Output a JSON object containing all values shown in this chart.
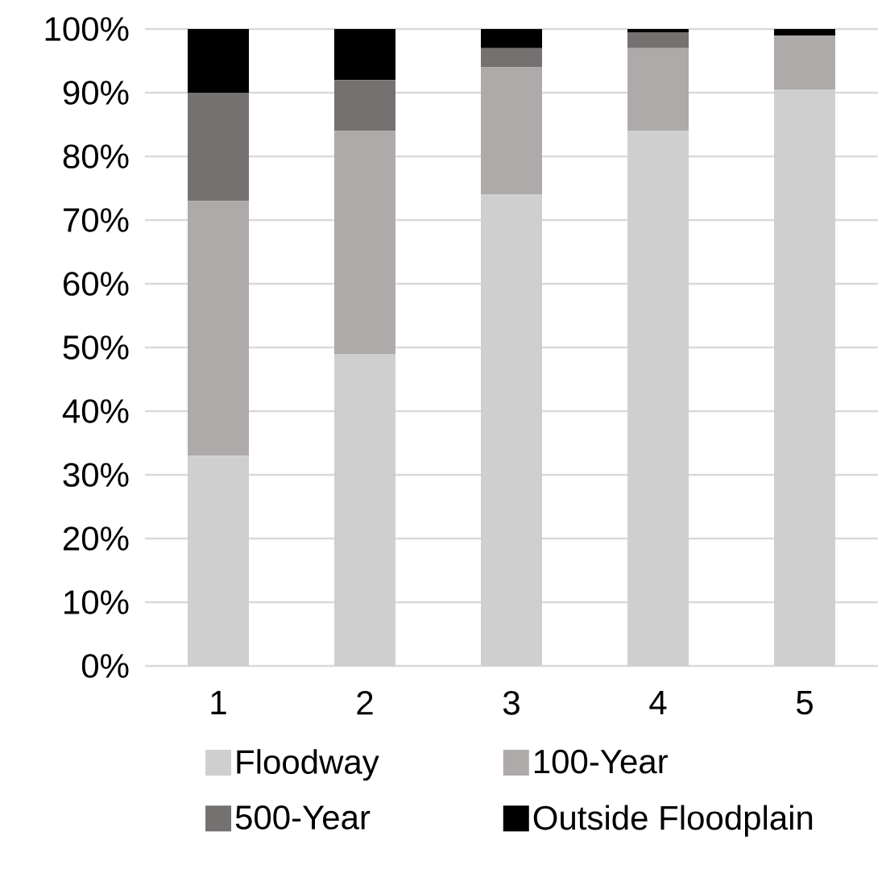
{
  "chart_data": {
    "type": "bar",
    "stacked": true,
    "categories": [
      "1",
      "2",
      "3",
      "4",
      "5"
    ],
    "series": [
      {
        "name": "Floodway",
        "color": "#d0cfcf",
        "values": [
          33,
          49,
          74,
          84,
          90.5
        ]
      },
      {
        "name": "100-Year",
        "color": "#aeaaaa",
        "values": [
          40,
          35,
          20,
          13,
          8.5
        ]
      },
      {
        "name": "500-Year",
        "color": "#767171",
        "values": [
          17,
          8,
          3,
          2.5,
          0
        ]
      },
      {
        "name": "Outside Floodplain",
        "color": "#000000",
        "values": [
          10,
          8,
          3,
          0.5,
          1
        ]
      }
    ],
    "ylim": [
      0,
      100
    ],
    "yticks": [
      {
        "value": 0,
        "label": "0%"
      },
      {
        "value": 10,
        "label": "10%"
      },
      {
        "value": 20,
        "label": "20%"
      },
      {
        "value": 30,
        "label": "30%"
      },
      {
        "value": 40,
        "label": "40%"
      },
      {
        "value": 50,
        "label": "50%"
      },
      {
        "value": 60,
        "label": "60%"
      },
      {
        "value": 70,
        "label": "70%"
      },
      {
        "value": 80,
        "label": "80%"
      },
      {
        "value": 90,
        "label": "90%"
      },
      {
        "value": 100,
        "label": "100%"
      }
    ],
    "grid": "y",
    "legend": "bottom"
  }
}
